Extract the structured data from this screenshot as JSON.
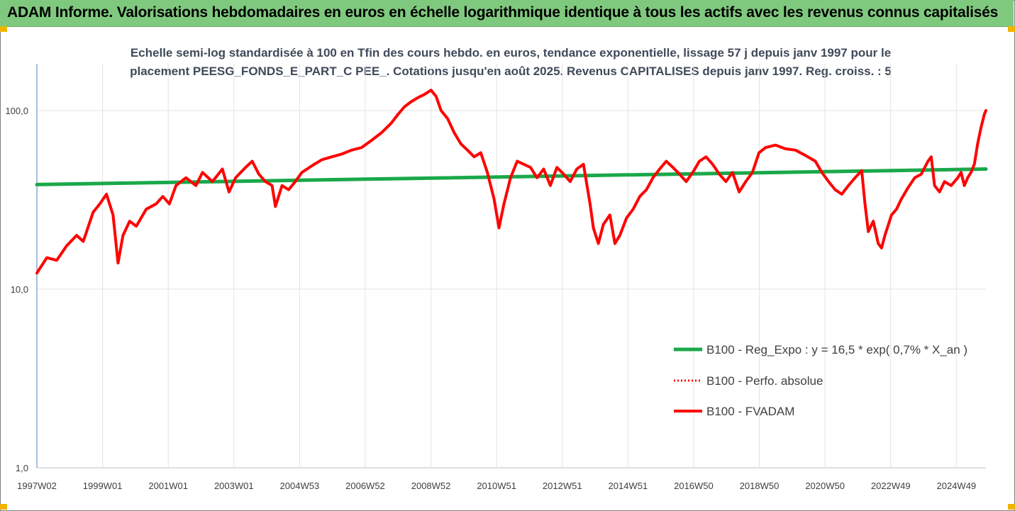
{
  "header": {
    "title": "ADAM Informe. Valorisations hebdomadaires en euros en échelle logarithmique identique à tous les actifs avec les revenus connus capitalisés"
  },
  "chart_data": {
    "type": "line",
    "title_line1": "Echelle semi-log standardisée à 100 en Tfin des cours hebdo. en euros, tendance exponentielle, lissage 57 j depuis janv 1997 pour le",
    "title_line2": "placement PEESG_FONDS_E_PART_C PEE_. Cotations jusqu'en août 2025. Revenus CAPITALISES depuis janv 1997. Reg. croiss. : 5",
    "y_scale": "log",
    "ylim": [
      1,
      200
    ],
    "y_ticks": [
      {
        "value": 1,
        "label": "1,0"
      },
      {
        "value": 10,
        "label": "10,0"
      },
      {
        "value": 100,
        "label": "100,0"
      }
    ],
    "x_ticks": [
      "1997W02",
      "1999W01",
      "2001W01",
      "2003W01",
      "2004W53",
      "2006W52",
      "2008W52",
      "2010W51",
      "2012W51",
      "2014W51",
      "2016W50",
      "2018W50",
      "2020W50",
      "2022W49",
      "2024W49"
    ],
    "xlim": [
      1997.0,
      2025.65
    ],
    "colors": {
      "reg": "#1aa84a",
      "perf": "#ff0000",
      "fvadam": "#ff0000",
      "axis": "#4f81bd",
      "grid": "#e3e3e3"
    },
    "legend_position": "right",
    "series": [
      {
        "name": "B100 - Reg_Expo : y = 16,5 * exp( 0,7% *  X_an )",
        "style": "solid-thick",
        "points": [
          [
            1997.0,
            38.5
          ],
          [
            2025.65,
            47.0
          ]
        ]
      },
      {
        "name": "B100 - Perfo. absolue",
        "style": "dotted",
        "points": []
      },
      {
        "name": "B100 - FVADAM",
        "style": "solid",
        "points": [
          [
            1997.0,
            12.3
          ],
          [
            1997.3,
            15.0
          ],
          [
            1997.6,
            14.5
          ],
          [
            1997.9,
            17.5
          ],
          [
            1998.2,
            20.0
          ],
          [
            1998.4,
            18.5
          ],
          [
            1998.7,
            27.0
          ],
          [
            1998.9,
            30.0
          ],
          [
            1999.1,
            34.0
          ],
          [
            1999.3,
            26.0
          ],
          [
            1999.45,
            14.0
          ],
          [
            1999.6,
            20.0
          ],
          [
            1999.8,
            24.0
          ],
          [
            2000.0,
            22.5
          ],
          [
            2000.3,
            28.0
          ],
          [
            2000.6,
            30.0
          ],
          [
            2000.8,
            33.0
          ],
          [
            2001.0,
            30.0
          ],
          [
            2001.2,
            38.0
          ],
          [
            2001.5,
            42.0
          ],
          [
            2001.8,
            38.0
          ],
          [
            2002.0,
            45.0
          ],
          [
            2002.3,
            40.0
          ],
          [
            2002.6,
            47.0
          ],
          [
            2002.8,
            35.0
          ],
          [
            2003.0,
            42.0
          ],
          [
            2003.3,
            48.0
          ],
          [
            2003.5,
            52.0
          ],
          [
            2003.7,
            44.0
          ],
          [
            2003.9,
            40.0
          ],
          [
            2004.1,
            38.0
          ],
          [
            2004.2,
            29.0
          ],
          [
            2004.4,
            38.0
          ],
          [
            2004.6,
            36.0
          ],
          [
            2004.8,
            40.0
          ],
          [
            2005.0,
            45.0
          ],
          [
            2005.3,
            49.0
          ],
          [
            2005.6,
            53.0
          ],
          [
            2005.9,
            55.0
          ],
          [
            2006.2,
            57.0
          ],
          [
            2006.5,
            60.0
          ],
          [
            2006.8,
            62.0
          ],
          [
            2007.1,
            68.0
          ],
          [
            2007.4,
            75.0
          ],
          [
            2007.7,
            85.0
          ],
          [
            2007.9,
            95.0
          ],
          [
            2008.1,
            105.0
          ],
          [
            2008.3,
            112.0
          ],
          [
            2008.5,
            118.0
          ],
          [
            2008.7,
            123.0
          ],
          [
            2008.9,
            130.0
          ],
          [
            2009.05,
            120.0
          ],
          [
            2009.2,
            100.0
          ],
          [
            2009.4,
            90.0
          ],
          [
            2009.6,
            75.0
          ],
          [
            2009.8,
            65.0
          ],
          [
            2010.0,
            60.0
          ],
          [
            2010.2,
            55.0
          ],
          [
            2010.4,
            58.0
          ],
          [
            2010.6,
            45.0
          ],
          [
            2010.8,
            32.0
          ],
          [
            2010.95,
            22.0
          ],
          [
            2011.1,
            30.0
          ],
          [
            2011.3,
            42.0
          ],
          [
            2011.5,
            52.0
          ],
          [
            2011.7,
            50.0
          ],
          [
            2011.9,
            48.0
          ],
          [
            2012.1,
            42.0
          ],
          [
            2012.3,
            47.0
          ],
          [
            2012.5,
            38.0
          ],
          [
            2012.7,
            48.0
          ],
          [
            2012.9,
            44.0
          ],
          [
            2013.1,
            40.0
          ],
          [
            2013.3,
            47.0
          ],
          [
            2013.5,
            50.0
          ],
          [
            2013.7,
            30.0
          ],
          [
            2013.8,
            22.0
          ],
          [
            2013.95,
            18.0
          ],
          [
            2014.1,
            23.0
          ],
          [
            2014.3,
            26.0
          ],
          [
            2014.45,
            18.0
          ],
          [
            2014.6,
            20.0
          ],
          [
            2014.8,
            25.0
          ],
          [
            2015.0,
            28.0
          ],
          [
            2015.2,
            33.0
          ],
          [
            2015.4,
            36.0
          ],
          [
            2015.6,
            42.0
          ],
          [
            2015.8,
            47.0
          ],
          [
            2016.0,
            52.0
          ],
          [
            2016.2,
            48.0
          ],
          [
            2016.4,
            44.0
          ],
          [
            2016.6,
            40.0
          ],
          [
            2016.8,
            45.0
          ],
          [
            2017.0,
            52.0
          ],
          [
            2017.2,
            55.0
          ],
          [
            2017.4,
            50.0
          ],
          [
            2017.6,
            44.0
          ],
          [
            2017.8,
            40.0
          ],
          [
            2018.0,
            45.0
          ],
          [
            2018.2,
            35.0
          ],
          [
            2018.4,
            40.0
          ],
          [
            2018.6,
            45.0
          ],
          [
            2018.8,
            58.0
          ],
          [
            2019.0,
            62.0
          ],
          [
            2019.3,
            64.0
          ],
          [
            2019.6,
            61.0
          ],
          [
            2019.9,
            60.0
          ],
          [
            2020.2,
            56.0
          ],
          [
            2020.5,
            52.0
          ],
          [
            2020.7,
            45.0
          ],
          [
            2020.9,
            40.0
          ],
          [
            2021.1,
            36.0
          ],
          [
            2021.3,
            34.0
          ],
          [
            2021.5,
            38.0
          ],
          [
            2021.7,
            42.0
          ],
          [
            2021.9,
            46.0
          ],
          [
            2022.0,
            30.0
          ],
          [
            2022.1,
            21.0
          ],
          [
            2022.25,
            24.0
          ],
          [
            2022.4,
            18.0
          ],
          [
            2022.5,
            17.0
          ],
          [
            2022.6,
            20.0
          ],
          [
            2022.8,
            26.0
          ],
          [
            2022.95,
            28.0
          ],
          [
            2023.1,
            32.0
          ],
          [
            2023.3,
            37.0
          ],
          [
            2023.5,
            42.0
          ],
          [
            2023.7,
            44.0
          ],
          [
            2023.9,
            52.0
          ],
          [
            2024.0,
            55.0
          ],
          [
            2024.1,
            38.0
          ],
          [
            2024.25,
            35.0
          ],
          [
            2024.4,
            40.0
          ],
          [
            2024.6,
            38.0
          ],
          [
            2024.8,
            42.0
          ],
          [
            2024.9,
            45.0
          ],
          [
            2025.0,
            38.0
          ],
          [
            2025.1,
            42.0
          ],
          [
            2025.2,
            45.0
          ],
          [
            2025.3,
            50.0
          ],
          [
            2025.4,
            65.0
          ],
          [
            2025.5,
            80.0
          ],
          [
            2025.6,
            95.0
          ],
          [
            2025.65,
            100.0
          ]
        ]
      }
    ]
  }
}
